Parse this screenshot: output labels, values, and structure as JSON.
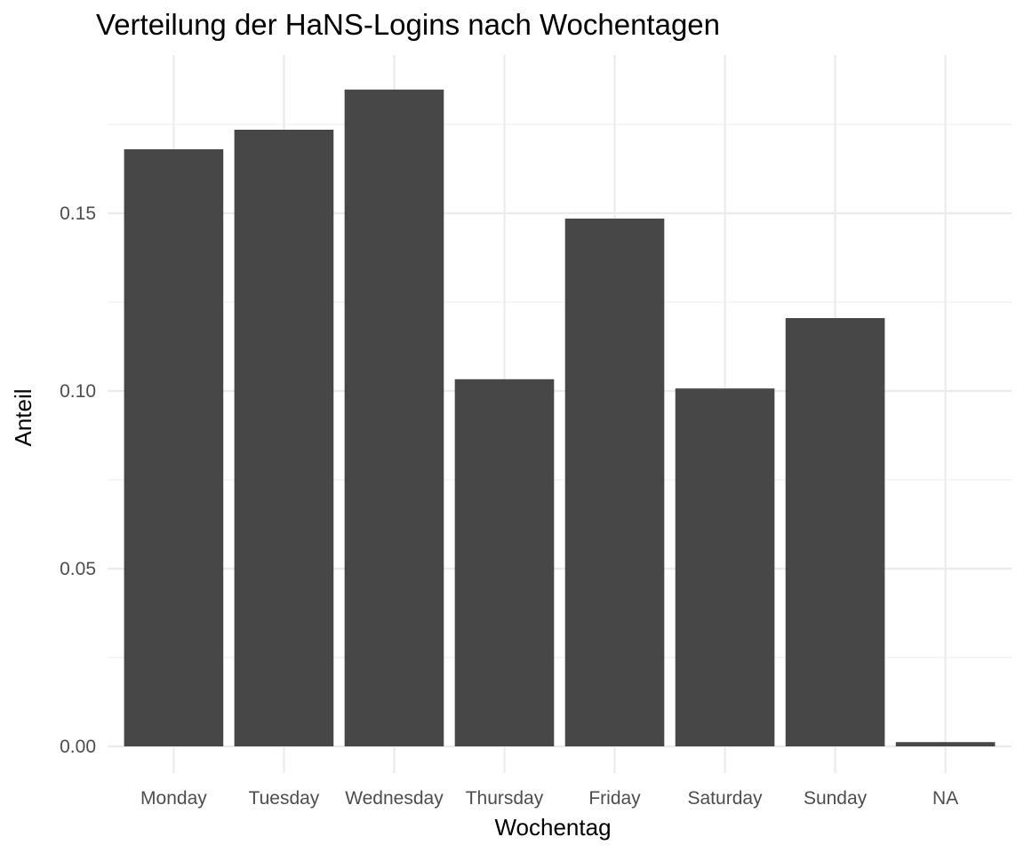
{
  "chart_data": {
    "type": "bar",
    "title": "Verteilung der HaNS-Logins nach Wochentagen",
    "xlabel": "Wochentag",
    "ylabel": "Anteil",
    "categories": [
      "Monday",
      "Tuesday",
      "Wednesday",
      "Thursday",
      "Friday",
      "Saturday",
      "Sunday",
      "NA"
    ],
    "values": [
      0.168,
      0.1735,
      0.1848,
      0.1033,
      0.1485,
      0.1007,
      0.1205,
      0.0012
    ],
    "yticks": [
      0.0,
      0.05,
      0.1,
      0.15
    ],
    "ytick_labels": [
      "0.00",
      "0.05",
      "0.10",
      "0.15"
    ],
    "ylim": [
      -0.0075,
      0.1945
    ],
    "grid": true,
    "bar_color": "#474747",
    "grid_color": "#ebebeb"
  }
}
